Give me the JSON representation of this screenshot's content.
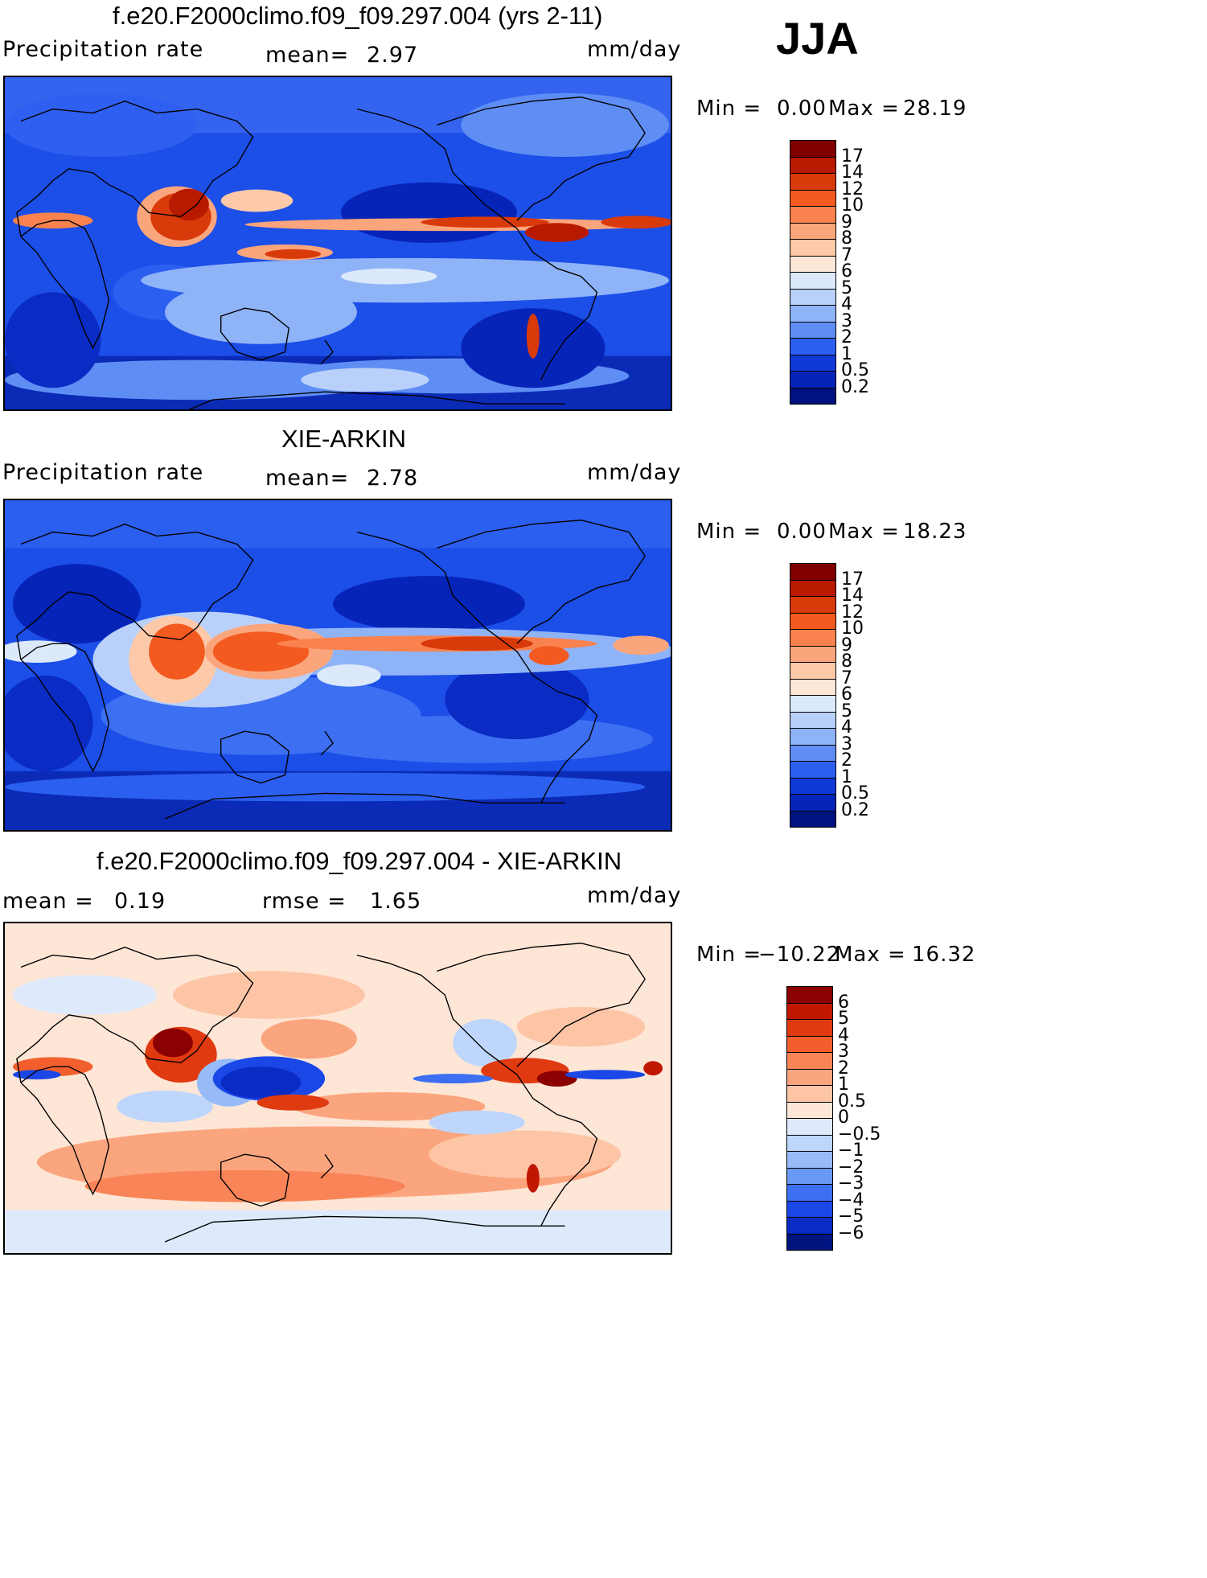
{
  "season": "JJA",
  "panels": [
    {
      "id": "model",
      "title": "f.e20.F2000climo.f09_f09.297.004 (yrs 2-11)",
      "left_label": "Precipitation rate",
      "stat1_label": "mean=",
      "stat1_value": "2.97",
      "stat2_label": "",
      "stat2_value": "",
      "units": "mm/day",
      "min_label": "Min =",
      "min_value": "0.00",
      "max_label": "Max =",
      "max_value": "28.19",
      "colorbar": {
        "levels": [
          "17",
          "14",
          "12",
          "10",
          "9",
          "8",
          "7",
          "6",
          "5",
          "4",
          "3",
          "2",
          "1",
          "0.5",
          "0.2"
        ],
        "colors": [
          "#800000",
          "#b81a00",
          "#d93a0a",
          "#f25a20",
          "#f9824e",
          "#fba57c",
          "#fdc9a8",
          "#fde8d8",
          "#dbe9fb",
          "#b9d1fa",
          "#8fb3f7",
          "#5e8ef4",
          "#2b5ff0",
          "#0f3ad8",
          "#0724b8",
          "#00127f"
        ]
      }
    },
    {
      "id": "obs",
      "title": "XIE-ARKIN",
      "left_label": "Precipitation rate",
      "stat1_label": "mean=",
      "stat1_value": "2.78",
      "stat2_label": "",
      "stat2_value": "",
      "units": "mm/day",
      "min_label": "Min =",
      "min_value": "0.00",
      "max_label": "Max =",
      "max_value": "18.23",
      "colorbar": {
        "levels": [
          "17",
          "14",
          "12",
          "10",
          "9",
          "8",
          "7",
          "6",
          "5",
          "4",
          "3",
          "2",
          "1",
          "0.5",
          "0.2"
        ],
        "colors": [
          "#800000",
          "#b81a00",
          "#d93a0a",
          "#f25a20",
          "#f9824e",
          "#fba57c",
          "#fdc9a8",
          "#fde8d8",
          "#dbe9fb",
          "#b9d1fa",
          "#8fb3f7",
          "#5e8ef4",
          "#2b5ff0",
          "#0f3ad8",
          "#0724b8",
          "#00127f"
        ]
      }
    },
    {
      "id": "diff",
      "title": "f.e20.F2000climo.f09_f09.297.004 - XIE-ARKIN",
      "left_label": "",
      "stat1_label": "mean =",
      "stat1_value": "0.19",
      "stat2_label": "rmse =",
      "stat2_value": "1.65",
      "units": "mm/day",
      "min_label": "Min =",
      "min_value": "−10.22",
      "max_label": "Max =",
      "max_value": "16.32",
      "colorbar": {
        "levels": [
          "6",
          "5",
          "4",
          "3",
          "2",
          "1",
          "0.5",
          "0",
          "−0.5",
          "−1",
          "−2",
          "−3",
          "−4",
          "−5",
          "−6"
        ],
        "colors": [
          "#8b0000",
          "#c01800",
          "#e03a10",
          "#f35f2c",
          "#f98458",
          "#fba57e",
          "#fdc5a6",
          "#fde6d6",
          "#deeafc",
          "#bed6fb",
          "#97bbf8",
          "#6a98f5",
          "#3d6ff2",
          "#1a47e6",
          "#0a2bc4",
          "#001480"
        ]
      }
    }
  ]
}
